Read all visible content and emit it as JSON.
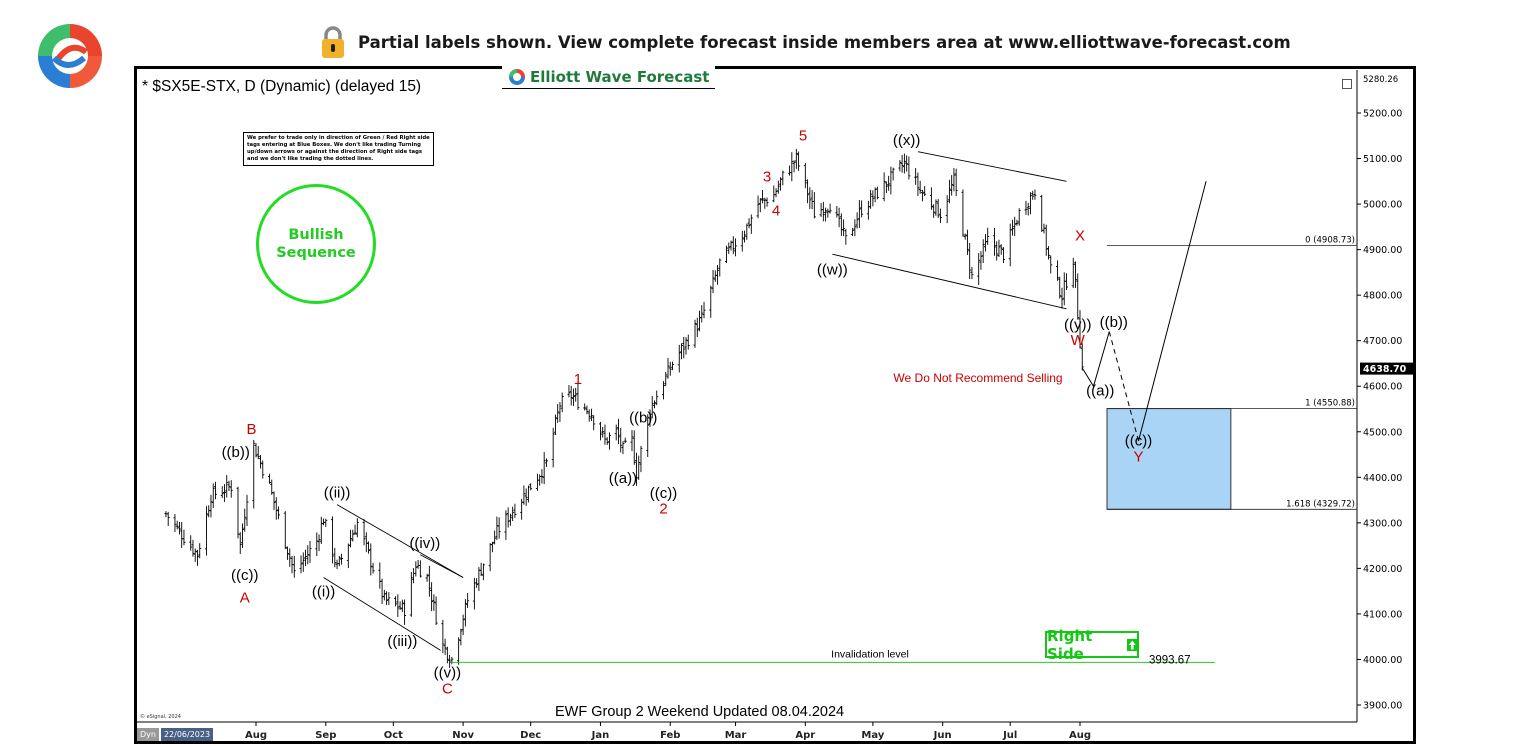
{
  "banner": {
    "text": "Partial labels shown. View complete forecast inside members area at www.elliottwave-forecast.com",
    "icon": "lock-icon"
  },
  "brand": {
    "name": "Elliott Wave Forecast",
    "icon": "ewf-logo-icon",
    "color": "#1f7a3c"
  },
  "chart_header": {
    "symbol": "* $SX5E-STX, D (Dynamic) (delayed 15)"
  },
  "disclaimer": "We prefer to trade only in direction of Green / Red Right side tags entering at Blue Boxes. We don't like trading Turning up/down arrows or against the direction of Right side tags and we don't like trading the dotted lines.",
  "bullish_badge": {
    "line1": "Bullish",
    "line2": "Sequence",
    "color": "#22cc22"
  },
  "right_side_tag": {
    "label": "Right Side",
    "icon": "arrow-up-icon",
    "color": "#16c616"
  },
  "recommendation": "We Do Not Recommend Selling",
  "invalidation": {
    "label": "Invalidation level",
    "value_label": "3993.67",
    "value": 3993.67
  },
  "footer": "EWF Group 2 Weekend Updated 08.04.2024",
  "credits": "© eSignal, 2024",
  "timeline": {
    "tag": "Dyn",
    "start_date": "22/06/2023"
  },
  "chart_data": {
    "type": "ohlc-bar",
    "title": "* $SX5E-STX, D (Dynamic) (delayed 15)",
    "y_axis": {
      "ticks": [
        3900,
        4000,
        4100,
        4200,
        4300,
        4400,
        4500,
        4600,
        4700,
        4800,
        4900,
        5000,
        5100,
        5200
      ],
      "tick_labels": [
        "3900.00",
        "4000.00",
        "4100.00",
        "4200.00",
        "4300.00",
        "4400.00",
        "4500.00",
        "4600.00",
        "4700.00",
        "4800.00",
        "4900.00",
        "5000.00",
        "5100.00",
        "5200.00"
      ],
      "top_label": "5280.26",
      "last_price": 4638.7,
      "last_price_label": "4638.70",
      "range": [
        3870,
        5290
      ]
    },
    "x_axis": {
      "months": [
        "Aug",
        "Sep",
        "Oct",
        "Nov",
        "Dec",
        "Jan",
        "Feb",
        "Mar",
        "Apr",
        "May",
        "Jun",
        "Jul",
        "Aug"
      ],
      "month_dates": [
        "2023-08-01",
        "2023-09-01",
        "2023-10-01",
        "2023-11-01",
        "2023-12-01",
        "2024-01-01",
        "2024-02-01",
        "2024-03-01",
        "2024-04-01",
        "2024-05-01",
        "2024-06-01",
        "2024-07-01",
        "2024-08-01"
      ],
      "start_date": "2023-06-22"
    },
    "price_path": [
      [
        "2023-06-22",
        4320
      ],
      [
        "2023-07-06",
        4230
      ],
      [
        "2023-07-12",
        4360
      ],
      [
        "2023-07-21",
        4380
      ],
      [
        "2023-07-25",
        4250
      ],
      [
        "2023-07-31",
        4470
      ],
      [
        "2023-08-07",
        4380
      ],
      [
        "2023-08-18",
        4190
      ],
      [
        "2023-08-28",
        4260
      ],
      [
        "2023-08-31",
        4310
      ],
      [
        "2023-09-06",
        4200
      ],
      [
        "2023-09-15",
        4300
      ],
      [
        "2023-09-20",
        4230
      ],
      [
        "2023-09-27",
        4130
      ],
      [
        "2023-10-06",
        4110
      ],
      [
        "2023-10-11",
        4210
      ],
      [
        "2023-10-16",
        4180
      ],
      [
        "2023-10-23",
        4030
      ],
      [
        "2023-10-27",
        4000
      ],
      [
        "2023-11-03",
        4130
      ],
      [
        "2023-11-16",
        4280
      ],
      [
        "2023-11-28",
        4360
      ],
      [
        "2023-12-08",
        4430
      ],
      [
        "2023-12-14",
        4560
      ],
      [
        "2023-12-19",
        4580
      ],
      [
        "2023-12-28",
        4540
      ],
      [
        "2024-01-03",
        4480
      ],
      [
        "2024-01-08",
        4500
      ],
      [
        "2024-01-11",
        4460
      ],
      [
        "2024-01-15",
        4480
      ],
      [
        "2024-01-17",
        4410
      ],
      [
        "2024-01-23",
        4550
      ],
      [
        "2024-02-02",
        4650
      ],
      [
        "2024-02-15",
        4750
      ],
      [
        "2024-02-23",
        4870
      ],
      [
        "2024-03-05",
        4940
      ],
      [
        "2024-03-11",
        5000
      ],
      [
        "2024-03-18",
        5020
      ],
      [
        "2024-03-22",
        5060
      ],
      [
        "2024-03-28",
        5100
      ],
      [
        "2024-04-05",
        4980
      ],
      [
        "2024-04-12",
        5000
      ],
      [
        "2024-04-19",
        4920
      ],
      [
        "2024-04-26",
        4990
      ],
      [
        "2024-05-06",
        5040
      ],
      [
        "2024-05-15",
        5090
      ],
      [
        "2024-05-22",
        5030
      ],
      [
        "2024-05-31",
        4980
      ],
      [
        "2024-06-06",
        5050
      ],
      [
        "2024-06-14",
        4840
      ],
      [
        "2024-06-21",
        4920
      ],
      [
        "2024-06-28",
        4890
      ],
      [
        "2024-07-05",
        4980
      ],
      [
        "2024-07-12",
        5030
      ],
      [
        "2024-07-19",
        4860
      ],
      [
        "2024-07-24",
        4800
      ],
      [
        "2024-07-29",
        4880
      ],
      [
        "2024-08-02",
        4640
      ]
    ],
    "projection": [
      [
        "2024-08-02",
        4640
      ],
      [
        "2024-08-07",
        4600
      ],
      [
        "2024-08-14",
        4720
      ],
      [
        "2024-08-27",
        4480
      ],
      [
        "2024-09-26",
        5050
      ]
    ],
    "wave_labels": [
      {
        "text": "((b))",
        "date": "2023-07-23",
        "price": 4445,
        "color": "#000000"
      },
      {
        "text": "B",
        "date": "2023-07-30",
        "price": 4495,
        "color": "#cc0000"
      },
      {
        "text": "((c))",
        "date": "2023-07-27",
        "price": 4175,
        "color": "#000000"
      },
      {
        "text": "A",
        "date": "2023-07-27",
        "price": 4125,
        "color": "#cc0000"
      },
      {
        "text": "((ii))",
        "date": "2023-09-06",
        "price": 4356,
        "color": "#000000"
      },
      {
        "text": "((i))",
        "date": "2023-08-31",
        "price": 4138,
        "color": "#000000"
      },
      {
        "text": "((iv))",
        "date": "2023-10-15",
        "price": 4245,
        "color": "#000000"
      },
      {
        "text": "((iii))",
        "date": "2023-10-05",
        "price": 4030,
        "color": "#000000"
      },
      {
        "text": "((v))",
        "date": "2023-10-25",
        "price": 3960,
        "color": "#000000"
      },
      {
        "text": "C",
        "date": "2023-10-25",
        "price": 3925,
        "color": "#cc0000"
      },
      {
        "text": "1",
        "date": "2023-12-22",
        "price": 4605,
        "color": "#cc0000"
      },
      {
        "text": "((b))",
        "date": "2024-01-20",
        "price": 4520,
        "color": "#000000"
      },
      {
        "text": "((a))",
        "date": "2024-01-11",
        "price": 4388,
        "color": "#000000"
      },
      {
        "text": "((c))",
        "date": "2024-01-29",
        "price": 4355,
        "color": "#000000"
      },
      {
        "text": "2",
        "date": "2024-01-29",
        "price": 4320,
        "color": "#cc0000"
      },
      {
        "text": "3",
        "date": "2024-03-15",
        "price": 5050,
        "color": "#cc0000"
      },
      {
        "text": "4",
        "date": "2024-03-19",
        "price": 4975,
        "color": "#cc0000"
      },
      {
        "text": "5",
        "date": "2024-03-31",
        "price": 5140,
        "color": "#cc0000"
      },
      {
        "text": "((x))",
        "date": "2024-05-16",
        "price": 5130,
        "color": "#000000"
      },
      {
        "text": "((w))",
        "date": "2024-04-13",
        "price": 4845,
        "color": "#000000"
      },
      {
        "text": "X",
        "date": "2024-08-01",
        "price": 4920,
        "color": "#cc0000"
      },
      {
        "text": "((y))",
        "date": "2024-07-31",
        "price": 4725,
        "color": "#000000"
      },
      {
        "text": "W",
        "date": "2024-07-31",
        "price": 4690,
        "color": "#cc0000"
      },
      {
        "text": "((b))",
        "date": "2024-08-16",
        "price": 4730,
        "color": "#000000"
      },
      {
        "text": "((a))",
        "date": "2024-08-10",
        "price": 4580,
        "color": "#000000"
      },
      {
        "text": "((c))",
        "date": "2024-08-27",
        "price": 4470,
        "color": "#000000"
      },
      {
        "text": "Y",
        "date": "2024-08-27",
        "price": 4435,
        "color": "#cc0000"
      }
    ],
    "fib_levels": [
      {
        "label": "0 (4908.73)",
        "value": 4908.73
      },
      {
        "label": "1 (4550.88)",
        "value": 4550.88
      },
      {
        "label": "1.618 (4329.72)",
        "value": 4329.72
      }
    ],
    "blue_box": {
      "from_date": "2024-08-13",
      "to_date": "2024-10-07",
      "high": 4550.88,
      "low": 4329.72,
      "color": "#a9d4f5"
    },
    "channels": [
      {
        "from": [
          "2023-09-06",
          4340
        ],
        "to": [
          "2023-11-01",
          4180
        ]
      },
      {
        "from": [
          "2023-08-31",
          4180
        ],
        "to": [
          "2023-10-22",
          4020
        ]
      },
      {
        "from": [
          "2023-10-13",
          4230
        ],
        "to": [
          "2023-11-01",
          4180
        ]
      },
      {
        "from": [
          "2024-05-21",
          5115
        ],
        "to": [
          "2024-07-26",
          5050
        ]
      },
      {
        "from": [
          "2024-04-13",
          4890
        ],
        "to": [
          "2024-07-26",
          4770
        ]
      }
    ],
    "invalidation_line": {
      "value": 3993.67,
      "from_date": "2023-10-27",
      "to_date": "2024-09-30",
      "color": "#22cc22"
    }
  }
}
